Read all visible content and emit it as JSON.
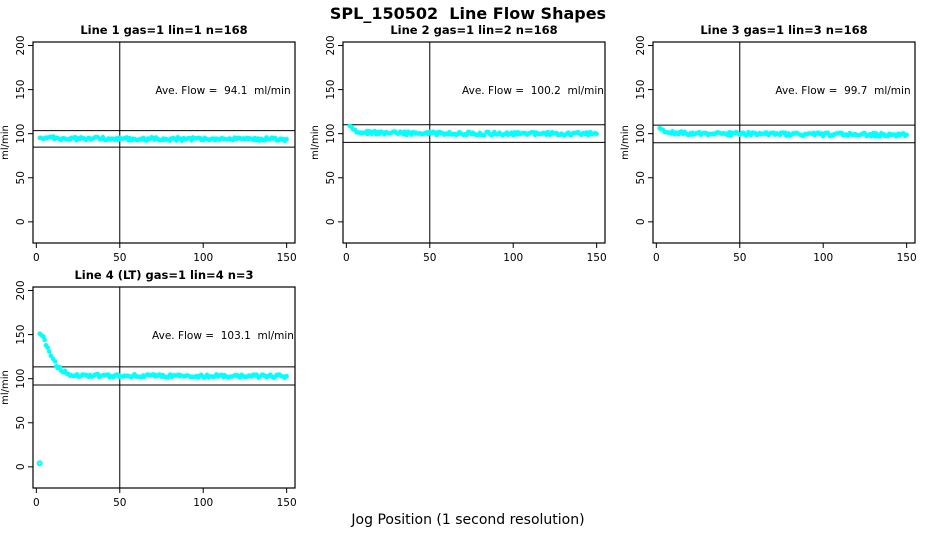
{
  "figure": {
    "title": "SPL_150502  Line Flow Shapes",
    "xlabel": "Jog Position (1 second resolution)",
    "background_color": "#ffffff",
    "point_color": "#00ffff",
    "axis_color": "#000000"
  },
  "chart_data": [
    {
      "type": "scatter",
      "title": "Line 1 gas=1 lin=1 n=168",
      "annotation": "Ave. Flow =  94.1  ml/min",
      "ave_flow_ml_min": 94.1,
      "ylabel": "ml/min",
      "xticks": [
        0,
        50,
        100,
        150
      ],
      "yticks": [
        0,
        50,
        100,
        150,
        200
      ],
      "xlim": [
        -2,
        155
      ],
      "ylim": [
        -24,
        204
      ],
      "ref_lines_y": [
        103.5,
        84.7
      ],
      "ref_line_x": 50,
      "points": [
        [
          2,
          96.5
        ],
        [
          4,
          95.5
        ],
        [
          8,
          95
        ],
        [
          15,
          94.6
        ],
        [
          30,
          94.3
        ],
        [
          60,
          94.1
        ],
        [
          100,
          93.9
        ],
        [
          150,
          93.7
        ]
      ],
      "outliers": []
    },
    {
      "type": "scatter",
      "title": "Line 2 gas=1 lin=2 n=168",
      "annotation": "Ave. Flow =  100.2  ml/min",
      "ave_flow_ml_min": 100.2,
      "ylabel": "ml/min",
      "xticks": [
        0,
        50,
        100,
        150
      ],
      "yticks": [
        0,
        50,
        100,
        150,
        200
      ],
      "xlim": [
        -2,
        155
      ],
      "ylim": [
        -24,
        204
      ],
      "ref_lines_y": [
        110.2,
        90.2
      ],
      "ref_line_x": 50,
      "points": [
        [
          2,
          110
        ],
        [
          3,
          108
        ],
        [
          4,
          106
        ],
        [
          5,
          104.5
        ],
        [
          6,
          103.5
        ],
        [
          8,
          102.5
        ],
        [
          10,
          101.8
        ],
        [
          14,
          101.2
        ],
        [
          20,
          100.8
        ],
        [
          30,
          100.5
        ],
        [
          50,
          100.3
        ],
        [
          100,
          100
        ],
        [
          150,
          99.8
        ]
      ],
      "outliers": []
    },
    {
      "type": "scatter",
      "title": "Line 3 gas=1 lin=3 n=168",
      "annotation": "Ave. Flow =  99.7  ml/min",
      "ave_flow_ml_min": 99.7,
      "ylabel": "ml/min",
      "xticks": [
        0,
        50,
        100,
        150
      ],
      "yticks": [
        0,
        50,
        100,
        150,
        200
      ],
      "xlim": [
        -2,
        155
      ],
      "ylim": [
        -24,
        204
      ],
      "ref_lines_y": [
        109.7,
        89.7
      ],
      "ref_line_x": 50,
      "points": [
        [
          2,
          107.5
        ],
        [
          3,
          106
        ],
        [
          4,
          104.5
        ],
        [
          5,
          103.2
        ],
        [
          6,
          102.4
        ],
        [
          8,
          101.6
        ],
        [
          10,
          101
        ],
        [
          15,
          100.5
        ],
        [
          20,
          100.2
        ],
        [
          30,
          100
        ],
        [
          50,
          99.8
        ],
        [
          100,
          99.2
        ],
        [
          150,
          98.7
        ]
      ],
      "outliers": []
    },
    {
      "type": "scatter",
      "title": "Line 4 (LT) gas=1 lin=4 n=3",
      "annotation": "Ave. Flow =  103.1  ml/min",
      "ave_flow_ml_min": 103.1,
      "ylabel": "ml/min",
      "xticks": [
        0,
        50,
        100,
        150
      ],
      "yticks": [
        0,
        50,
        100,
        150,
        200
      ],
      "xlim": [
        -2,
        155
      ],
      "ylim": [
        -24,
        204
      ],
      "ref_lines_y": [
        113.4,
        92.8
      ],
      "ref_line_x": 50,
      "points": [
        [
          2,
          152
        ],
        [
          3,
          149
        ],
        [
          4,
          146
        ],
        [
          5,
          142.5
        ],
        [
          6,
          138.5
        ],
        [
          7,
          134.5
        ],
        [
          8,
          130.5
        ],
        [
          9,
          126.5
        ],
        [
          10,
          122.5
        ],
        [
          11,
          119
        ],
        [
          12,
          116
        ],
        [
          13,
          113.5
        ],
        [
          14,
          111.3
        ],
        [
          15,
          109.5
        ],
        [
          16,
          108.2
        ],
        [
          17,
          107.2
        ],
        [
          18,
          106.3
        ],
        [
          20,
          105.2
        ],
        [
          22,
          104.6
        ],
        [
          25,
          104.1
        ],
        [
          30,
          103.7
        ],
        [
          40,
          103.4
        ],
        [
          50,
          103.2
        ],
        [
          75,
          103.1
        ],
        [
          100,
          103
        ],
        [
          125,
          102.9
        ],
        [
          150,
          102.8
        ]
      ],
      "outliers": [
        [
          2,
          4
        ]
      ]
    }
  ]
}
